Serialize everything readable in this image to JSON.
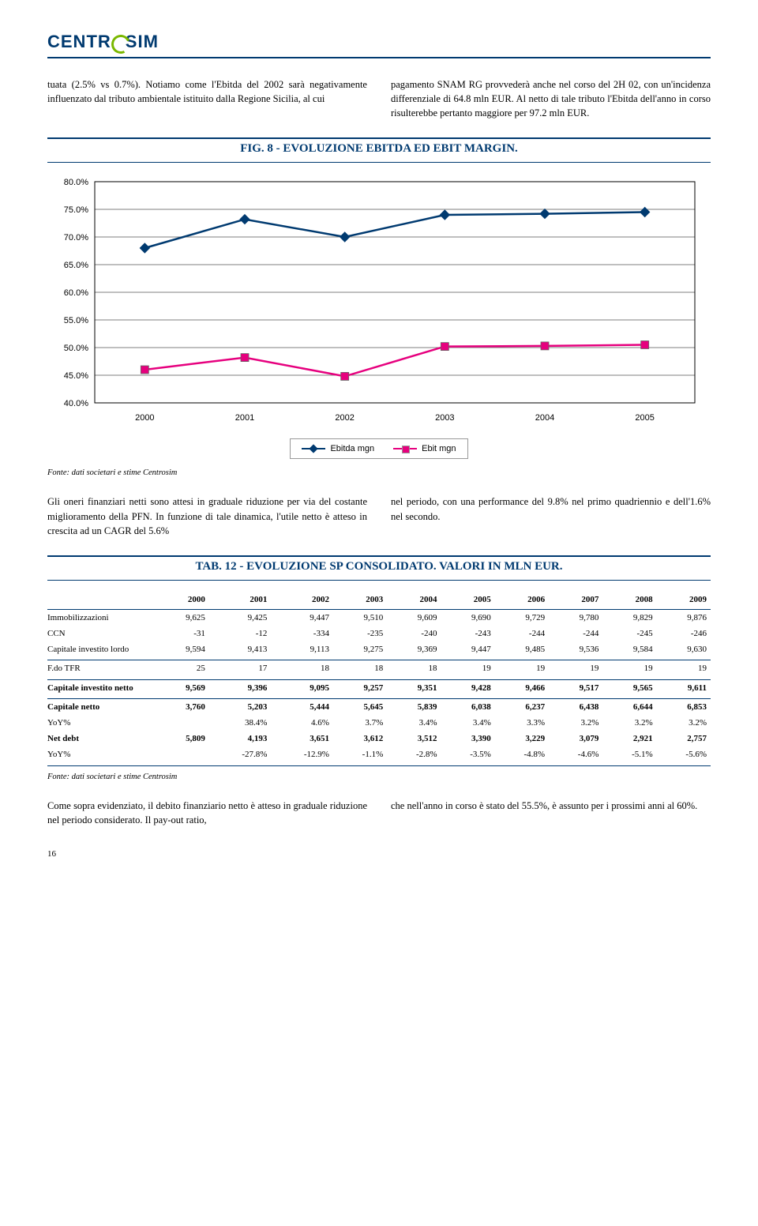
{
  "logo": {
    "text_left": "CENTR",
    "text_right": "SIM"
  },
  "para1_left": "tuata (2.5% vs 0.7%).\nNotiamo come l'Ebitda del 2002 sarà negativamente influenzato dal tributo ambientale istituito dalla Regione Sicilia, al cui",
  "para1_right": "pagamento SNAM RG provvederà anche nel corso del 2H 02, con un'incidenza differenziale di 64.8 mln EUR. Al netto di tale tributo l'Ebitda dell'anno in corso risulterebbe pertanto maggiore per 97.2 mln EUR.",
  "fig8_title": "FIG. 8 - EVOLUZIONE EBITDA ED EBIT MARGIN.",
  "chart": {
    "type": "line",
    "categories": [
      "2000",
      "2001",
      "2002",
      "2003",
      "2004",
      "2005"
    ],
    "ebitda_mgn": [
      68.0,
      73.2,
      70.0,
      74.0,
      74.2,
      74.5
    ],
    "ebit_mgn": [
      46.0,
      48.2,
      44.8,
      50.2,
      50.3,
      50.5
    ],
    "ylim": [
      40.0,
      80.0
    ],
    "ytick_step": 5.0,
    "ylabels": [
      "40.0%",
      "45.0%",
      "50.0%",
      "55.0%",
      "60.0%",
      "65.0%",
      "70.0%",
      "75.0%",
      "80.0%"
    ],
    "colors": {
      "ebitda": "#003a70",
      "ebit": "#e6007e",
      "grid": "#000000",
      "axis": "#000000"
    },
    "legend": {
      "ebitda": "Ebitda mgn",
      "ebit": "Ebit mgn"
    }
  },
  "fonte": "Fonte: dati societari e stime Centrosim",
  "para2_left": "Gli oneri finanziari netti sono attesi in graduale riduzione per via del costante miglioramento della PFN. In funzione di tale dinamica, l'utile netto è atteso in crescita ad un CAGR del 5.6%",
  "para2_right": "nel periodo, con una performance del 9.8% nel primo quadriennio e dell'1.6% nel secondo.",
  "tab12_title": "TAB. 12 - EVOLUZIONE SP CONSOLIDATO. VALORI IN MLN EUR.",
  "table": {
    "header": [
      "",
      "2000",
      "2001",
      "2002",
      "2003",
      "2004",
      "2005",
      "2006",
      "2007",
      "2008",
      "2009"
    ],
    "rows": [
      {
        "label": "Immobilizzazioni",
        "v": [
          "9,625",
          "9,425",
          "9,447",
          "9,510",
          "9,609",
          "9,690",
          "9,729",
          "9,780",
          "9,829",
          "9,876"
        ]
      },
      {
        "label": "CCN",
        "v": [
          "-31",
          "-12",
          "-334",
          "-235",
          "-240",
          "-243",
          "-244",
          "-244",
          "-245",
          "-246"
        ]
      },
      {
        "label": "Capitale investito lordo",
        "v": [
          "9,594",
          "9,413",
          "9,113",
          "9,275",
          "9,369",
          "9,447",
          "9,485",
          "9,536",
          "9,584",
          "9,630"
        ]
      }
    ],
    "rows2": [
      {
        "label": "F.do TFR",
        "v": [
          "25",
          "17",
          "18",
          "18",
          "18",
          "19",
          "19",
          "19",
          "19",
          "19"
        ]
      }
    ],
    "rows3": [
      {
        "label": "Capitale investito netto",
        "bold": true,
        "v": [
          "9,569",
          "9,396",
          "9,095",
          "9,257",
          "9,351",
          "9,428",
          "9,466",
          "9,517",
          "9,565",
          "9,611"
        ]
      }
    ],
    "rows4": [
      {
        "label": "Capitale netto",
        "bold": true,
        "v": [
          "3,760",
          "5,203",
          "5,444",
          "5,645",
          "5,839",
          "6,038",
          "6,237",
          "6,438",
          "6,644",
          "6,853"
        ]
      },
      {
        "label": "YoY%",
        "v": [
          "",
          "38.4%",
          "4.6%",
          "3.7%",
          "3.4%",
          "3.4%",
          "3.3%",
          "3.2%",
          "3.2%",
          "3.2%"
        ]
      },
      {
        "label": "Net debt",
        "bold": true,
        "v": [
          "5,809",
          "4,193",
          "3,651",
          "3,612",
          "3,512",
          "3,390",
          "3,229",
          "3,079",
          "2,921",
          "2,757"
        ]
      },
      {
        "label": "YoY%",
        "v": [
          "",
          "-27.8%",
          "-12.9%",
          "-1.1%",
          "-2.8%",
          "-3.5%",
          "-4.8%",
          "-4.6%",
          "-5.1%",
          "-5.6%"
        ]
      }
    ]
  },
  "para3_left": "Come sopra evidenziato, il debito finanziario netto è atteso in graduale riduzione nel periodo considerato. Il pay-out ratio,",
  "para3_right": "che nell'anno in corso è stato del 55.5%, è assunto per i prossimi anni al 60%.",
  "page_number": "16"
}
